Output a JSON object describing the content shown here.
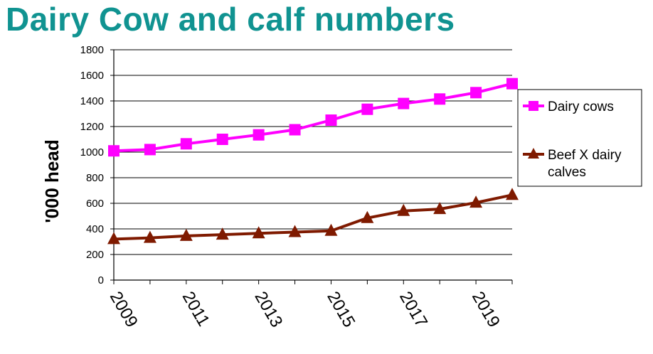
{
  "title": "Dairy Cow and calf numbers",
  "colors": {
    "title": "#109391",
    "dairy_cows": "#FF00FF",
    "beef_calves": "#7F1A00"
  },
  "chart_data": {
    "type": "line",
    "title": "Dairy Cow and calf numbers",
    "xlabel": "",
    "ylabel": "'000 head",
    "ylim": [
      0,
      1800
    ],
    "y_ticks": [
      0,
      200,
      400,
      600,
      800,
      1000,
      1200,
      1400,
      1600,
      1800
    ],
    "x": [
      2009,
      2010,
      2011,
      2012,
      2013,
      2014,
      2015,
      2016,
      2017,
      2018,
      2019,
      2020
    ],
    "x_tick_labels": [
      "2009",
      "2011",
      "2013",
      "2015",
      "2017",
      "2019"
    ],
    "grid": "horizontal",
    "legend_position": "right",
    "series": [
      {
        "name": "Dairy cows",
        "marker": "square",
        "color": "#FF00FF",
        "values": [
          1010,
          1020,
          1065,
          1100,
          1135,
          1175,
          1250,
          1335,
          1380,
          1415,
          1465,
          1535
        ]
      },
      {
        "name": "Beef X dairy calves",
        "marker": "triangle",
        "color": "#7F1A00",
        "values": [
          320,
          330,
          345,
          355,
          365,
          375,
          385,
          485,
          540,
          555,
          605,
          665
        ]
      }
    ],
    "legend": [
      "Dairy cows",
      "Beef X dairy",
      "calves"
    ]
  }
}
